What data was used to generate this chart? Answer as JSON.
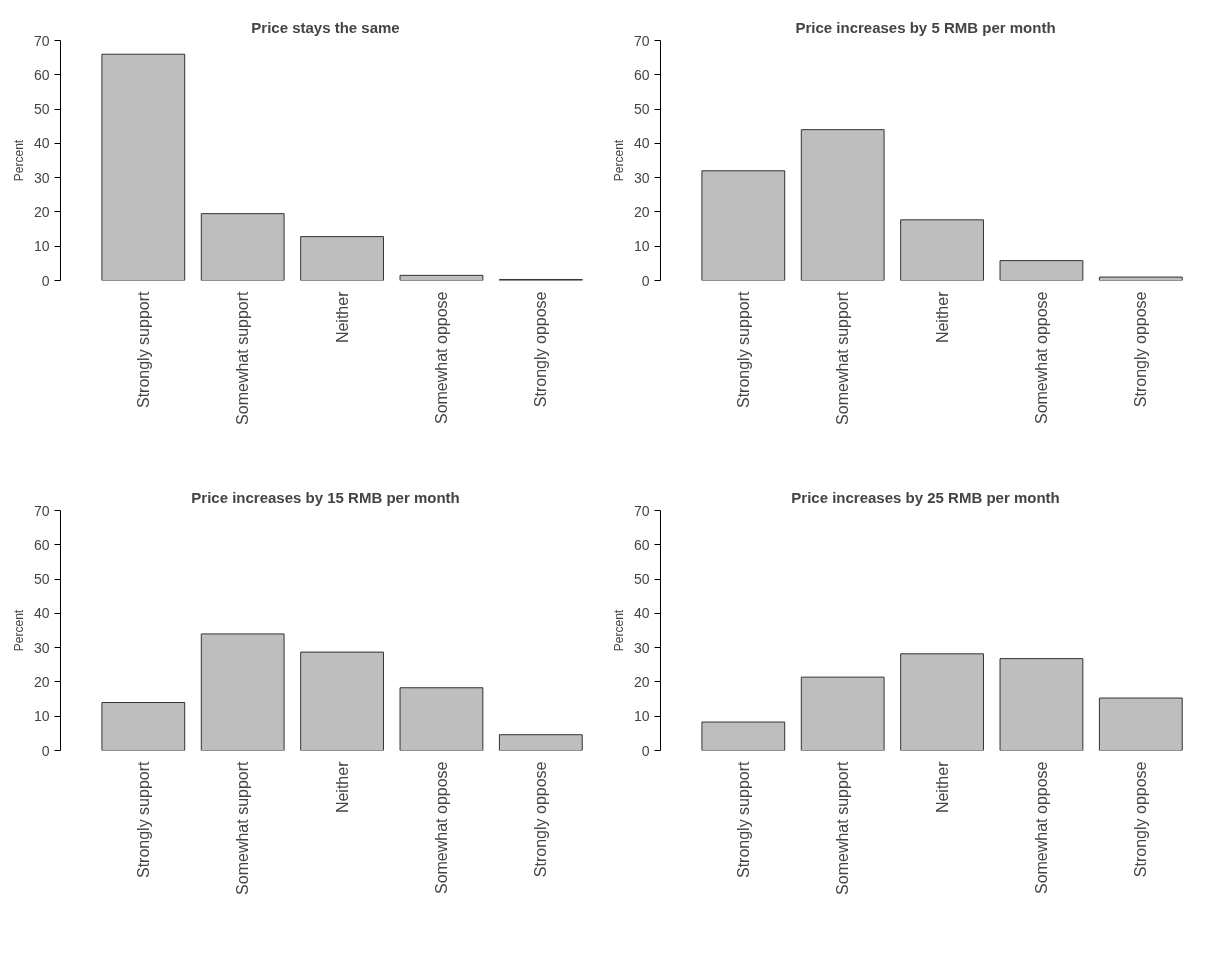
{
  "chart_data": [
    {
      "type": "bar",
      "title": "Price stays the same",
      "ylabel": "Percent",
      "categories": [
        "Strongly support",
        "Somewhat support",
        "Neither",
        "Somewhat oppose",
        "Strongly oppose"
      ],
      "values": [
        66,
        19.5,
        12.8,
        1.5,
        0.3
      ],
      "color": "#bebebe",
      "ylim": [
        0,
        70
      ],
      "yticks": [
        0,
        10,
        20,
        30,
        40,
        50,
        60,
        70
      ]
    },
    {
      "type": "bar",
      "title": "Price increases by 5 RMB per month",
      "ylabel": "Percent",
      "categories": [
        "Strongly support",
        "Somewhat support",
        "Neither",
        "Somewhat oppose",
        "Strongly oppose"
      ],
      "values": [
        32,
        44,
        17.7,
        5.8,
        1
      ],
      "color": "#bebebe",
      "ylim": [
        0,
        70
      ],
      "yticks": [
        0,
        10,
        20,
        30,
        40,
        50,
        60,
        70
      ]
    },
    {
      "type": "bar",
      "title": "Price increases by 15 RMB per month",
      "ylabel": "Percent",
      "categories": [
        "Strongly support",
        "Somewhat support",
        "Neither",
        "Somewhat oppose",
        "Strongly oppose"
      ],
      "values": [
        14,
        34,
        28.7,
        18.3,
        4.6
      ],
      "color": "#bebebe",
      "ylim": [
        0,
        70
      ],
      "yticks": [
        0,
        10,
        20,
        30,
        40,
        50,
        60,
        70
      ]
    },
    {
      "type": "bar",
      "title": "Price increases by 25 RMB per month",
      "ylabel": "Percent",
      "categories": [
        "Strongly support",
        "Somewhat support",
        "Neither",
        "Somewhat oppose",
        "Strongly oppose"
      ],
      "values": [
        8.3,
        21.4,
        28.2,
        26.8,
        15.3
      ],
      "color": "#bebebe",
      "ylim": [
        0,
        70
      ],
      "yticks": [
        0,
        10,
        20,
        30,
        40,
        50,
        60,
        70
      ]
    }
  ]
}
